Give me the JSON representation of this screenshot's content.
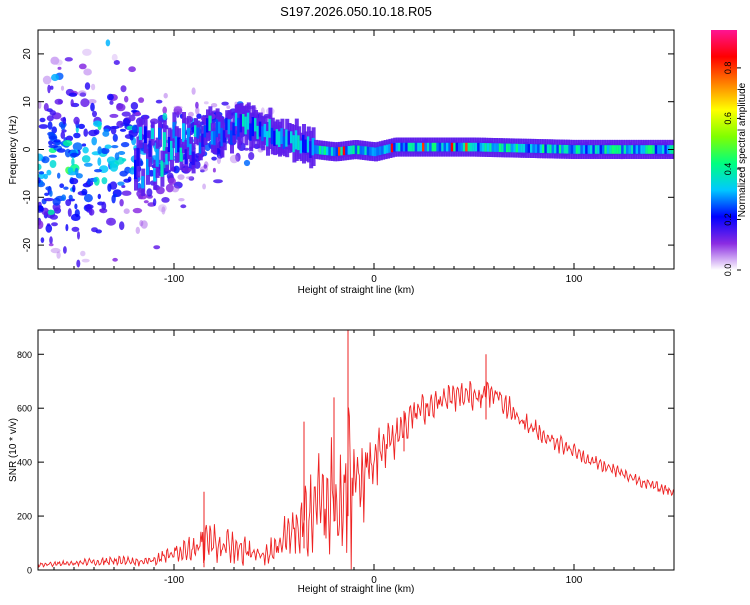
{
  "page": {
    "title": "S197.2026.050.10.18.R05"
  },
  "chart_data": [
    {
      "type": "heatmap",
      "name": "spectrogram",
      "xlabel": "Height of straight line (km)",
      "ylabel": "Frequency (Hz)",
      "xlim": [
        -168,
        150
      ],
      "ylim": [
        -25,
        25
      ],
      "x_ticks": [
        -100,
        0,
        100
      ],
      "y_ticks": [
        -20,
        -10,
        0,
        10,
        20
      ],
      "trend": {
        "x": [
          -168,
          -150,
          -130,
          -110,
          -95,
          -80,
          -65,
          -50,
          -40,
          -30,
          -20,
          -10,
          0,
          10,
          50,
          100,
          150
        ],
        "center_hz": [
          -4,
          -3,
          -2,
          -1.5,
          1,
          3,
          5,
          3,
          1.5,
          0,
          -0.5,
          0,
          -0.5,
          0.5,
          0.5,
          0,
          0
        ],
        "spread_hz": [
          25,
          25,
          22,
          16,
          12,
          9,
          7,
          4,
          2.5,
          1.5,
          1,
          1,
          1,
          1,
          1,
          1,
          1
        ]
      },
      "colorbar": {
        "label": "Normalized spectral amplitude",
        "ticks": [
          "0.0",
          "0.2",
          "0.4",
          "0.6",
          "0.8"
        ],
        "range": [
          0,
          0.95
        ],
        "colors": [
          "#ffffff",
          "#8a2be2",
          "#0000ff",
          "#00c8ff",
          "#00ff80",
          "#80ff00",
          "#ffff00",
          "#ff8000",
          "#ff0000",
          "#ff1493"
        ]
      }
    },
    {
      "type": "line",
      "name": "snr",
      "xlabel": "Height of straight line (km)",
      "ylabel": "SNR (10 * v/v)",
      "xlim": [
        -168,
        150
      ],
      "ylim": [
        0,
        890
      ],
      "x_ticks": [
        -100,
        0,
        100
      ],
      "y_ticks": [
        0,
        200,
        400,
        600,
        800
      ],
      "color": "#ee2222",
      "envelope": {
        "x": [
          -168,
          -150,
          -130,
          -120,
          -110,
          -100,
          -90,
          -85,
          -80,
          -75,
          -70,
          -65,
          -60,
          -55,
          -50,
          -45,
          -40,
          -35,
          -30,
          -25,
          -20,
          -15,
          -12,
          -10,
          -8,
          -5,
          0,
          5,
          10,
          15,
          20,
          30,
          40,
          50,
          55,
          60,
          65,
          70,
          80,
          90,
          100,
          110,
          120,
          130,
          140,
          150
        ],
        "base": [
          20,
          25,
          35,
          30,
          35,
          60,
          80,
          110,
          100,
          90,
          80,
          70,
          60,
          50,
          80,
          120,
          150,
          180,
          220,
          250,
          280,
          300,
          300,
          300,
          320,
          350,
          420,
          470,
          500,
          540,
          580,
          620,
          640,
          650,
          660,
          650,
          620,
          580,
          520,
          480,
          440,
          400,
          370,
          340,
          310,
          290
        ],
        "amp": [
          10,
          12,
          20,
          18,
          20,
          45,
          60,
          90,
          90,
          80,
          70,
          60,
          50,
          40,
          60,
          90,
          120,
          160,
          200,
          260,
          300,
          350,
          400,
          350,
          320,
          250,
          150,
          120,
          100,
          80,
          70,
          60,
          60,
          60,
          65,
          70,
          60,
          50,
          45,
          40,
          35,
          30,
          28,
          26,
          24,
          22
        ]
      },
      "spikes": [
        {
          "x": -13,
          "y": 890
        },
        {
          "x": -20,
          "y": 640
        },
        {
          "x": -85,
          "y": 290
        },
        {
          "x": -35,
          "y": 550
        },
        {
          "x": 15,
          "y": 590
        },
        {
          "x": 56,
          "y": 800
        }
      ]
    }
  ]
}
